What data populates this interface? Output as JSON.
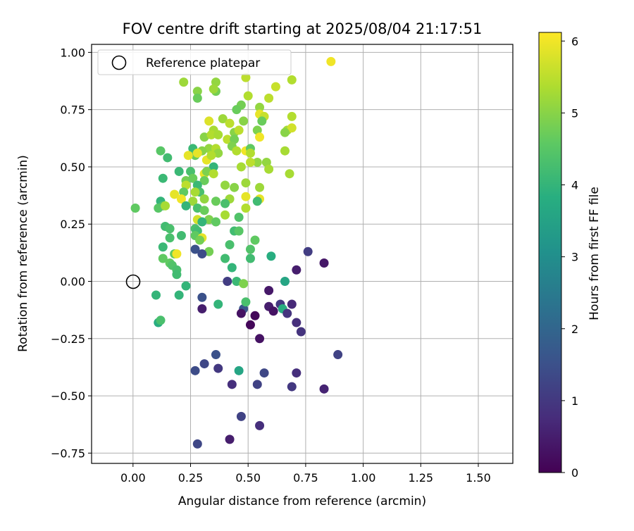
{
  "chart_data": {
    "type": "scatter",
    "title": "FOV centre drift starting at 2025/08/04 21:17:51",
    "xlabel": "Angular distance from reference (arcmin)",
    "ylabel": "Rotation from reference (arcmin)",
    "xlim": [
      -0.18,
      1.65
    ],
    "ylim": [
      -0.795,
      1.035
    ],
    "xticks": [
      "0.00",
      "0.25",
      "0.50",
      "0.75",
      "1.00",
      "1.25",
      "1.50"
    ],
    "xtick_values": [
      0,
      0.25,
      0.5,
      0.75,
      1.0,
      1.25,
      1.5
    ],
    "yticks": [
      "1.00",
      "0.75",
      "0.50",
      "0.25",
      "0.00",
      "−0.25",
      "−0.50",
      "−0.75"
    ],
    "ytick_values": [
      1.0,
      0.75,
      0.5,
      0.25,
      0,
      -0.25,
      -0.5,
      -0.75
    ],
    "grid": true,
    "legend": {
      "position": "upper-left",
      "label": "Reference platepar",
      "marker": "open-circle"
    },
    "reference_point": {
      "x": 0,
      "y": 0
    },
    "colorbar": {
      "label": "Hours from first FF file",
      "min": 0,
      "max": 6.12,
      "ticks": [
        "0",
        "1",
        "2",
        "3",
        "4",
        "5",
        "6"
      ],
      "tick_values": [
        0,
        1,
        2,
        3,
        4,
        5,
        6
      ],
      "colormap": "viridis"
    },
    "point_columns": [
      "x",
      "y",
      "hours"
    ],
    "points": [
      [
        0.86,
        0.96,
        6.0
      ],
      [
        0.69,
        0.88,
        5.4
      ],
      [
        0.62,
        0.85,
        5.6
      ],
      [
        0.22,
        0.87,
        5.2
      ],
      [
        0.36,
        0.87,
        5.1
      ],
      [
        0.28,
        0.83,
        5.0
      ],
      [
        0.36,
        0.83,
        4.8
      ],
      [
        0.49,
        0.89,
        5.5
      ],
      [
        0.59,
        0.8,
        5.5
      ],
      [
        0.5,
        0.81,
        5.4
      ],
      [
        0.28,
        0.8,
        4.7
      ],
      [
        0.35,
        0.84,
        5.2
      ],
      [
        0.47,
        0.77,
        4.8
      ],
      [
        0.45,
        0.75,
        4.7
      ],
      [
        0.55,
        0.76,
        5.1
      ],
      [
        0.55,
        0.73,
        5.9
      ],
      [
        0.57,
        0.72,
        5.6
      ],
      [
        0.69,
        0.72,
        5.4
      ],
      [
        0.33,
        0.7,
        5.8
      ],
      [
        0.39,
        0.71,
        5.2
      ],
      [
        0.42,
        0.69,
        5.5
      ],
      [
        0.48,
        0.7,
        5.0
      ],
      [
        0.56,
        0.7,
        4.7
      ],
      [
        0.67,
        0.66,
        5.3
      ],
      [
        0.69,
        0.67,
        5.7
      ],
      [
        0.66,
        0.65,
        5.0
      ],
      [
        0.35,
        0.66,
        5.3
      ],
      [
        0.44,
        0.65,
        5.0
      ],
      [
        0.46,
        0.66,
        5.5
      ],
      [
        0.54,
        0.66,
        4.9
      ],
      [
        0.31,
        0.63,
        5.0
      ],
      [
        0.34,
        0.64,
        5.4
      ],
      [
        0.37,
        0.64,
        5.3
      ],
      [
        0.41,
        0.62,
        5.5
      ],
      [
        0.44,
        0.62,
        4.8
      ],
      [
        0.55,
        0.63,
        6.0
      ],
      [
        0.33,
        0.58,
        5.1
      ],
      [
        0.36,
        0.58,
        5.4
      ],
      [
        0.37,
        0.56,
        5.1
      ],
      [
        0.43,
        0.59,
        4.9
      ],
      [
        0.45,
        0.57,
        5.4
      ],
      [
        0.49,
        0.57,
        6.0
      ],
      [
        0.51,
        0.58,
        4.6
      ],
      [
        0.51,
        0.56,
        5.4
      ],
      [
        0.26,
        0.58,
        4.1
      ],
      [
        0.27,
        0.55,
        4.7
      ],
      [
        0.3,
        0.57,
        5.0
      ],
      [
        0.12,
        0.57,
        4.5
      ],
      [
        0.28,
        0.56,
        5.9
      ],
      [
        0.24,
        0.55,
        5.9
      ],
      [
        0.32,
        0.53,
        5.9
      ],
      [
        0.34,
        0.55,
        5.4
      ],
      [
        0.15,
        0.54,
        4.2
      ],
      [
        0.66,
        0.57,
        5.3
      ],
      [
        0.54,
        0.52,
        5.1
      ],
      [
        0.58,
        0.52,
        5.1
      ],
      [
        0.51,
        0.52,
        5.5
      ],
      [
        0.59,
        0.49,
        5.3
      ],
      [
        0.68,
        0.47,
        5.3
      ],
      [
        0.47,
        0.5,
        5.3
      ],
      [
        0.35,
        0.5,
        4.0
      ],
      [
        0.31,
        0.47,
        5.9
      ],
      [
        0.32,
        0.48,
        4.9
      ],
      [
        0.35,
        0.47,
        5.4
      ],
      [
        0.25,
        0.48,
        4.3
      ],
      [
        0.2,
        0.48,
        4.1
      ],
      [
        0.13,
        0.45,
        4.1
      ],
      [
        0.23,
        0.44,
        4.8
      ],
      [
        0.23,
        0.42,
        5.5
      ],
      [
        0.26,
        0.45,
        4.7
      ],
      [
        0.31,
        0.44,
        4.7
      ],
      [
        0.28,
        0.42,
        4.1
      ],
      [
        0.29,
        0.39,
        4.3
      ],
      [
        0.27,
        0.39,
        5.3
      ],
      [
        0.22,
        0.39,
        4.6
      ],
      [
        0.49,
        0.43,
        5.2
      ],
      [
        0.4,
        0.42,
        5.1
      ],
      [
        0.44,
        0.41,
        5.0
      ],
      [
        0.55,
        0.41,
        5.2
      ],
      [
        0.49,
        0.37,
        5.9
      ],
      [
        0.55,
        0.36,
        5.9
      ],
      [
        0.54,
        0.35,
        4.2
      ],
      [
        0.42,
        0.36,
        5.2
      ],
      [
        0.4,
        0.34,
        4.3
      ],
      [
        0.36,
        0.35,
        4.7
      ],
      [
        0.31,
        0.36,
        5.1
      ],
      [
        0.26,
        0.35,
        5.2
      ],
      [
        0.18,
        0.38,
        5.9
      ],
      [
        0.21,
        0.36,
        6.0
      ],
      [
        0.12,
        0.35,
        4.0
      ],
      [
        0.13,
        0.33,
        4.3
      ],
      [
        0.11,
        0.32,
        4.5
      ],
      [
        0.01,
        0.32,
        4.6
      ],
      [
        0.14,
        0.33,
        5.3
      ],
      [
        0.23,
        0.33,
        4.0
      ],
      [
        0.28,
        0.32,
        4.3
      ],
      [
        0.31,
        0.31,
        4.7
      ],
      [
        0.49,
        0.32,
        5.4
      ],
      [
        0.4,
        0.29,
        5.3
      ],
      [
        0.28,
        0.27,
        5.7
      ],
      [
        0.33,
        0.27,
        4.9
      ],
      [
        0.36,
        0.26,
        4.6
      ],
      [
        0.46,
        0.28,
        4.4
      ],
      [
        0.3,
        0.26,
        4.0
      ],
      [
        0.14,
        0.24,
        4.2
      ],
      [
        0.16,
        0.23,
        4.3
      ],
      [
        0.27,
        0.23,
        4.3
      ],
      [
        0.28,
        0.22,
        4.2
      ],
      [
        0.44,
        0.22,
        4.2
      ],
      [
        0.46,
        0.22,
        4.5
      ],
      [
        0.53,
        0.18,
        4.6
      ],
      [
        0.16,
        0.19,
        4.3
      ],
      [
        0.21,
        0.2,
        4.2
      ],
      [
        0.27,
        0.2,
        4.6
      ],
      [
        0.3,
        0.19,
        5.9
      ],
      [
        0.29,
        0.18,
        4.8
      ],
      [
        0.42,
        0.16,
        4.3
      ],
      [
        0.13,
        0.15,
        4.1
      ],
      [
        0.27,
        0.14,
        1.5
      ],
      [
        0.33,
        0.13,
        4.8
      ],
      [
        0.3,
        0.12,
        1.4
      ],
      [
        0.18,
        0.12,
        4.6
      ],
      [
        0.19,
        0.12,
        6.0
      ],
      [
        0.51,
        0.14,
        4.4
      ],
      [
        0.51,
        0.1,
        4.2
      ],
      [
        0.13,
        0.1,
        4.6
      ],
      [
        0.4,
        0.1,
        4.2
      ],
      [
        0.6,
        0.11,
        3.8
      ],
      [
        0.76,
        0.13,
        1.1
      ],
      [
        0.16,
        0.08,
        4.6
      ],
      [
        0.17,
        0.07,
        4.4
      ],
      [
        0.43,
        0.06,
        4.0
      ],
      [
        0.19,
        0.05,
        4.3
      ],
      [
        0.19,
        0.03,
        4.2
      ],
      [
        0.41,
        0.0,
        1.1
      ],
      [
        0.45,
        0.0,
        4.1
      ],
      [
        0.48,
        -0.01,
        4.9
      ],
      [
        0.71,
        0.05,
        0.5
      ],
      [
        0.83,
        0.08,
        0.4
      ],
      [
        0.66,
        0.0,
        3.6
      ],
      [
        0.1,
        -0.06,
        4.0
      ],
      [
        0.2,
        -0.06,
        4.0
      ],
      [
        0.23,
        -0.02,
        4.0
      ],
      [
        0.3,
        -0.07,
        1.5
      ],
      [
        0.3,
        -0.12,
        0.5
      ],
      [
        0.37,
        -0.1,
        4.0
      ],
      [
        0.48,
        -0.12,
        1.6
      ],
      [
        0.49,
        -0.09,
        4.3
      ],
      [
        0.47,
        -0.14,
        0.3
      ],
      [
        0.53,
        -0.15,
        0.1
      ],
      [
        0.59,
        -0.04,
        0.4
      ],
      [
        0.59,
        -0.11,
        0.5
      ],
      [
        0.61,
        -0.13,
        0.3
      ],
      [
        0.64,
        -0.1,
        1.0
      ],
      [
        0.65,
        -0.12,
        3.8
      ],
      [
        0.67,
        -0.14,
        0.9
      ],
      [
        0.69,
        -0.1,
        0.7
      ],
      [
        0.71,
        -0.18,
        0.8
      ],
      [
        0.73,
        -0.22,
        0.9
      ],
      [
        0.51,
        -0.19,
        0.1
      ],
      [
        0.55,
        -0.25,
        0.3
      ],
      [
        0.11,
        -0.18,
        3.8
      ],
      [
        0.12,
        -0.17,
        4.3
      ],
      [
        0.27,
        -0.39,
        1.4
      ],
      [
        0.31,
        -0.36,
        1.3
      ],
      [
        0.36,
        -0.32,
        1.5
      ],
      [
        0.37,
        -0.38,
        1.0
      ],
      [
        0.43,
        -0.45,
        0.8
      ],
      [
        0.46,
        -0.39,
        3.6
      ],
      [
        0.54,
        -0.45,
        1.2
      ],
      [
        0.57,
        -0.4,
        1.3
      ],
      [
        0.69,
        -0.46,
        1.0
      ],
      [
        0.71,
        -0.4,
        0.8
      ],
      [
        0.83,
        -0.47,
        0.6
      ],
      [
        0.89,
        -0.32,
        1.2
      ],
      [
        0.47,
        -0.59,
        1.2
      ],
      [
        0.55,
        -0.63,
        0.8
      ],
      [
        0.42,
        -0.69,
        0.5
      ],
      [
        0.28,
        -0.71,
        1.3
      ]
    ]
  }
}
